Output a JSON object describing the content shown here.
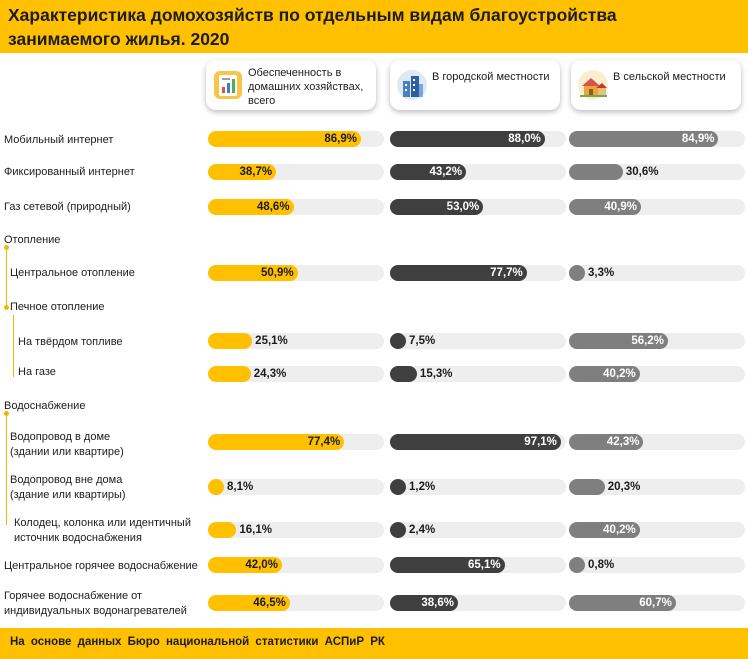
{
  "header": {
    "title": "Характеристика домохозяйств по отдельным видам благоустройства занимаемого жилья. 2020"
  },
  "footer": {
    "source": "На основе данных Бюро национальной статистики АСПиР РК"
  },
  "colors": {
    "accent": "#ffc000",
    "total": "#ffc000",
    "urban": "#3f3f3f",
    "rural": "#7f7f7f",
    "track": "#eeeeee"
  },
  "columns": [
    {
      "label": "Обеспеченность в домашних хозяйствах, всего",
      "icon": "analytics-report-icon"
    },
    {
      "label": "В городской местности",
      "icon": "city-buildings-icon"
    },
    {
      "label": "В сельской местности",
      "icon": "village-house-icon"
    }
  ],
  "rows": [
    {
      "label": "Мобильный интернет"
    },
    {
      "label": "Фиксированный интернет"
    },
    {
      "label": "Газ сетевой (природный)"
    },
    {
      "label": "Отопление"
    },
    {
      "label": "Центральное отопление"
    },
    {
      "label": "Печное отопление"
    },
    {
      "label": "На твёрдом топливе"
    },
    {
      "label": "На газе"
    },
    {
      "label": "Водоснабжение"
    },
    {
      "label": "Водопровод в доме\n(здании или квартире)"
    },
    {
      "label": "Водопровод вне дома\n(здание или квартиры)"
    },
    {
      "label": "Колодец, колонка или идентичный\nисточник водоснабжения"
    },
    {
      "label": "Центральное горячее водоснабжение"
    },
    {
      "label": "Горячее водоснабжение от\nиндивидуальных водонагревателей"
    }
  ],
  "chart_data": {
    "type": "bar",
    "title": "Характеристика домохозяйств по отдельным видам благоустройства занимаемого жилья. 2020",
    "unit": "%",
    "categories": [
      "Мобильный интернет",
      "Фиксированный интернет",
      "Газ сетевой (природный)",
      "Центральное отопление",
      "На твёрдом топливе",
      "На газе",
      "Водопровод в доме (здании или квартире)",
      "Водопровод вне дома (здание или квартиры)",
      "Колодец, колонка или идентичный источник водоснабжения",
      "Центральное горячее водоснабжение",
      "Горячее водоснабжение от индивидуальных водонагревателей"
    ],
    "series": [
      {
        "name": "Обеспеченность в домашних хозяйствах, всего",
        "values": [
          86.9,
          38.7,
          48.6,
          50.9,
          25.1,
          24.3,
          77.4,
          8.1,
          16.1,
          42.0,
          46.5
        ],
        "labels": [
          "86,9%",
          "38,7%",
          "48,6%",
          "50,9%",
          "25,1%",
          "24,3%",
          "77,4%",
          "8,1%",
          "16,1%",
          "42,0%",
          "46,5%"
        ]
      },
      {
        "name": "В городской местности",
        "values": [
          88.0,
          43.2,
          53.0,
          77.7,
          7.5,
          15.3,
          97.1,
          1.2,
          2.4,
          65.1,
          38.6
        ],
        "labels": [
          "88,0%",
          "43,2%",
          "53,0%",
          "77,7%",
          "7,5%",
          "15,3%",
          "97,1%",
          "1,2%",
          "2,4%",
          "65,1%",
          "38,6%"
        ]
      },
      {
        "name": "В сельской местности",
        "values": [
          84.9,
          30.6,
          40.9,
          3.3,
          56.2,
          40.2,
          42.3,
          20.3,
          40.2,
          0.8,
          60.7
        ],
        "labels": [
          "84,9%",
          "30,6%",
          "40,9%",
          "3,3%",
          "56,2%",
          "40,2%",
          "42,3%",
          "20,3%",
          "40,2%",
          "0,8%",
          "60,7%"
        ]
      }
    ],
    "ylim": [
      0,
      100
    ],
    "grid": false,
    "legend": "top"
  }
}
